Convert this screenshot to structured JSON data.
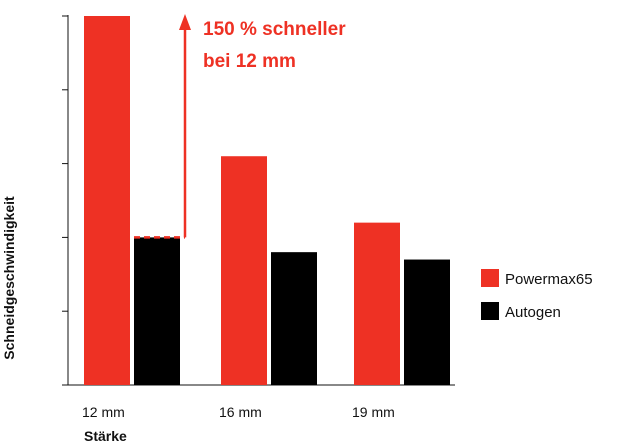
{
  "chart_data": {
    "type": "bar",
    "title": "",
    "xlabel": "Stärke",
    "ylabel": "Schneidgeschwindigkeit",
    "categories": [
      "12 mm",
      "16 mm",
      "19 mm"
    ],
    "series": [
      {
        "name": "Powermax65",
        "color": "#ee3124",
        "values": [
          100,
          62,
          44
        ]
      },
      {
        "name": "Autogen",
        "color": "#000000",
        "values": [
          40,
          36,
          34
        ]
      }
    ],
    "ylim": [
      0,
      100
    ],
    "y_ticks_labeled": false,
    "grid": false,
    "legend_position": "right",
    "annotation": {
      "line1": "150 % schneller",
      "line2": "bei 12 mm",
      "color": "#ee3124"
    }
  }
}
